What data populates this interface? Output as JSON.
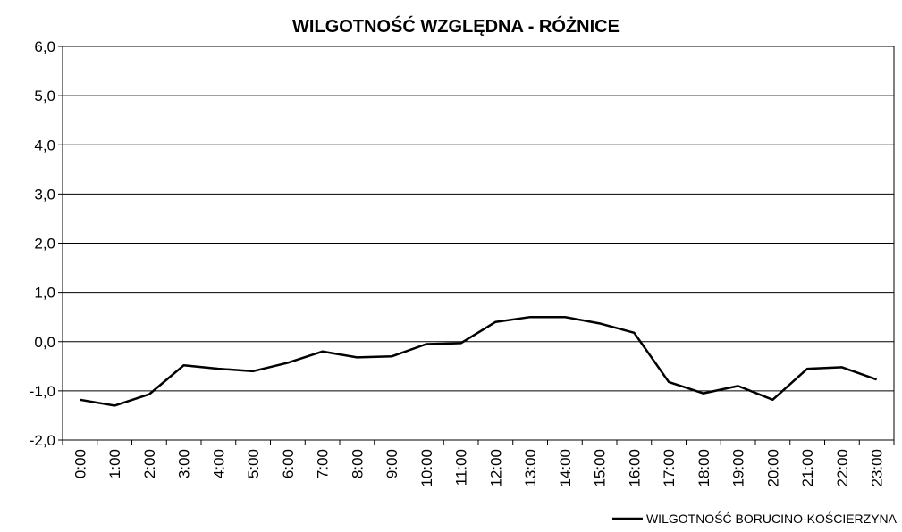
{
  "chart_data": {
    "type": "line",
    "title": "WILGOTNOŚĆ WZGLĘDNA - RÓŻNICE",
    "categories": [
      "0:00",
      "1:00",
      "2:00",
      "3:00",
      "4:00",
      "5:00",
      "6:00",
      "7:00",
      "8:00",
      "9:00",
      "10:00",
      "11:00",
      "12:00",
      "13:00",
      "14:00",
      "15:00",
      "16:00",
      "17:00",
      "18:00",
      "19:00",
      "20:00",
      "21:00",
      "22:00",
      "23:00"
    ],
    "series": [
      {
        "name": "WILGOTNOŚĆ BORUCINO-KOŚCIERZYNA",
        "color": "#000000",
        "values": [
          -1.18,
          -1.3,
          -1.07,
          -0.48,
          -0.55,
          -0.6,
          -0.43,
          -0.2,
          -0.32,
          -0.3,
          -0.05,
          -0.03,
          0.4,
          0.5,
          0.5,
          0.37,
          0.18,
          -0.82,
          -1.05,
          -0.9,
          -1.18,
          -0.55,
          -0.52,
          -0.77
        ]
      }
    ],
    "ylim": [
      -2,
      6
    ],
    "yticks": [
      {
        "value": -2,
        "label": "-2,0"
      },
      {
        "value": -1,
        "label": "-1,0"
      },
      {
        "value": 0,
        "label": "0,0"
      },
      {
        "value": 1,
        "label": "1,0"
      },
      {
        "value": 2,
        "label": "2,0"
      },
      {
        "value": 3,
        "label": "3,0"
      },
      {
        "value": 4,
        "label": "4,0"
      },
      {
        "value": 5,
        "label": "5,0"
      },
      {
        "value": 6,
        "label": "6,0"
      }
    ],
    "grid": true,
    "legend": "lower right"
  }
}
